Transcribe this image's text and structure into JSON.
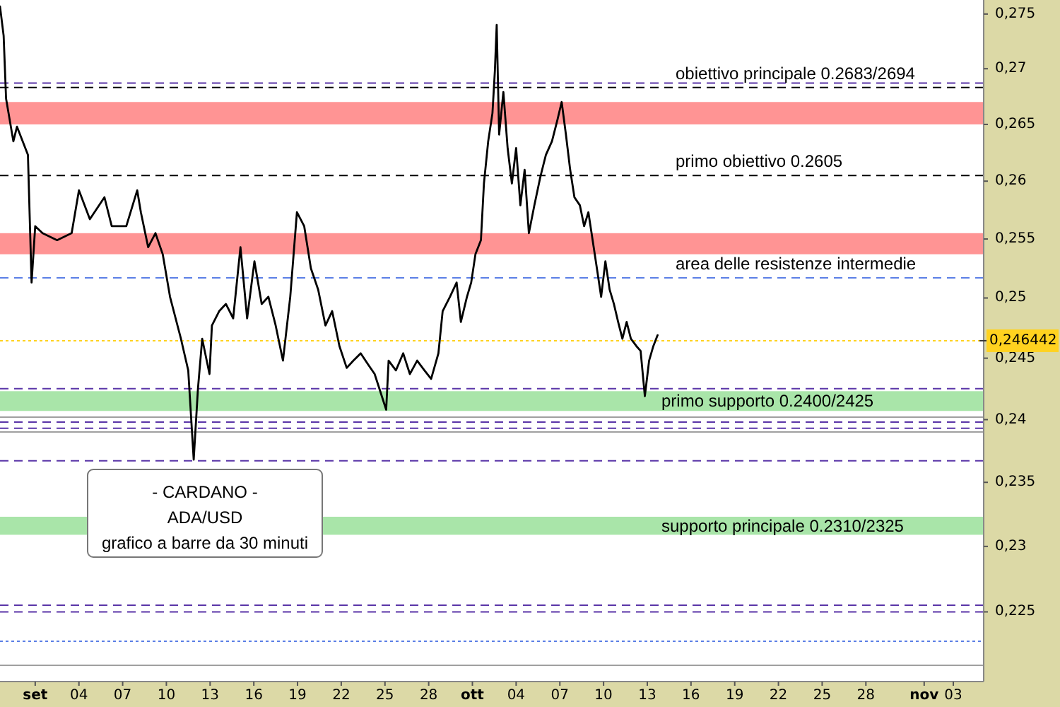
{
  "chart_data": {
    "type": "line",
    "log": "y",
    "xlim": [
      "--08-29T14:00",
      "--11-05T02:00"
    ],
    "ylim": [
      0.2198,
      0.2763
    ],
    "xticks": [
      {
        "value": "--09-01",
        "label": "set"
      },
      {
        "value": "--09-04",
        "label": "04"
      },
      {
        "value": "--09-07",
        "label": "07"
      },
      {
        "value": "--09-10",
        "label": "10"
      },
      {
        "value": "--09-13",
        "label": "13"
      },
      {
        "value": "--09-16",
        "label": "16"
      },
      {
        "value": "--09-19",
        "label": "19"
      },
      {
        "value": "--09-22",
        "label": "22"
      },
      {
        "value": "--09-25",
        "label": "25"
      },
      {
        "value": "--09-28",
        "label": "28"
      },
      {
        "value": "--10-01",
        "label": "ott"
      },
      {
        "value": "--10-04",
        "label": "04"
      },
      {
        "value": "--10-07",
        "label": "07"
      },
      {
        "value": "--10-10",
        "label": "10"
      },
      {
        "value": "--10-13",
        "label": "13"
      },
      {
        "value": "--10-16",
        "label": "16"
      },
      {
        "value": "--10-19",
        "label": "19"
      },
      {
        "value": "--10-22",
        "label": "22"
      },
      {
        "value": "--10-25",
        "label": "25"
      },
      {
        "value": "--10-28",
        "label": "28"
      },
      {
        "value": "--11-01",
        "label": "nov"
      },
      {
        "value": "--11-03",
        "label": "03"
      }
    ],
    "yticks": [
      {
        "value": 0.225,
        "label": "0,225"
      },
      {
        "value": 0.23,
        "label": "0,23"
      },
      {
        "value": 0.235,
        "label": "0,235"
      },
      {
        "value": 0.24,
        "label": "0,24"
      },
      {
        "value": 0.245,
        "label": "0,245"
      },
      {
        "value": 0.25,
        "label": "0,25"
      },
      {
        "value": 0.255,
        "label": "0,255"
      },
      {
        "value": 0.26,
        "label": "0,26"
      },
      {
        "value": 0.265,
        "label": "0,265"
      },
      {
        "value": 0.27,
        "label": "0,27"
      },
      {
        "value": 0.275,
        "label": "0,275"
      }
    ],
    "series": [
      {
        "color": "#000000",
        "x": [
          "--08-29T14:00",
          "--08-29T20:00",
          "--08-30T00:00",
          "--08-30T12:00",
          "--08-30T18:00",
          "--08-31T12:00",
          "--08-31T18:00",
          "--09-01T00:00",
          "--09-01T12:00",
          "--09-02T12:00",
          "--09-03T12:00",
          "--09-04T00:00",
          "--09-04T18:00",
          "--09-05T18:00",
          "--09-06T06:00",
          "--09-07T06:00",
          "--09-08T00:00",
          "--09-08T06:00",
          "--09-08T18:00",
          "--09-09T06:00",
          "--09-09T18:00",
          "--09-10T06:00",
          "--09-11T00:00",
          "--09-11T12:00",
          "--09-11T21:00",
          "--09-12T04:00",
          "--09-12T11:00",
          "--09-12T23:00",
          "--09-13T03:00",
          "--09-13T15:00",
          "--09-14T02:00",
          "--09-14T14:00",
          "--09-15T02:00",
          "--09-15T13:00",
          "--09-16T01:00",
          "--09-16T13:00",
          "--09-17T00:00",
          "--09-17T12:00",
          "--09-18T00:00",
          "--09-18T12:00",
          "--09-18T23:00",
          "--09-19T11:00",
          "--09-19T22:00",
          "--09-20T10:00",
          "--09-20T22:00",
          "--09-21T09:00",
          "--09-21T21:00",
          "--09-22T09:00",
          "--09-22T20:00",
          "--09-23T08:00",
          "--09-23T20:00",
          "--09-24T07:00",
          "--09-25T02:00",
          "--09-25T06:00",
          "--09-25T18:00",
          "--09-26T06:00",
          "--09-26T17:00",
          "--09-27T05:00",
          "--09-27T17:00",
          "--09-28T04:00",
          "--09-28T16:00",
          "--09-28T23:00",
          "--09-29T11:00",
          "--09-29T22:00",
          "--09-30T05:00",
          "--09-30T15:00",
          "--09-30T22:00",
          "--10-01T05:00",
          "--10-01T14:00",
          "--10-01T19:00",
          "--10-02T02:00",
          "--10-02T09:00",
          "--10-02T13:00",
          "--10-02T16:00",
          "--10-02T20:00",
          "--10-03T03:00",
          "--10-03T10:00",
          "--10-03T17:00",
          "--10-04T00:00",
          "--10-04T07:00",
          "--10-04T14:00",
          "--10-04T21:00",
          "--10-05T06:00",
          "--10-05T16:00",
          "--10-06T01:00",
          "--10-06T11:00",
          "--10-06T20:00",
          "--10-07T03:00",
          "--10-07T10:00",
          "--10-07T17:00",
          "--10-08T00:00",
          "--10-08T09:00",
          "--10-08T16:00",
          "--10-08T23:00",
          "--10-09T06:00",
          "--10-09T13:00",
          "--10-09T20:00",
          "--10-10T03:00",
          "--10-10T10:00",
          "--10-10T17:00",
          "--10-11T00:00",
          "--10-11T07:00",
          "--10-11T14:00",
          "--10-11T21:00",
          "--10-12T06:00",
          "--10-12T13:00",
          "--10-12T20:00",
          "--10-13T03:00",
          "--10-13T10:00",
          "--10-13T17:00"
        ],
        "values": [
          0.2757,
          0.273,
          0.2673,
          0.2635,
          0.2648,
          0.2623,
          0.2513,
          0.2561,
          0.2555,
          0.2549,
          0.2555,
          0.2592,
          0.2567,
          0.2586,
          0.2561,
          0.2561,
          0.2592,
          0.2573,
          0.2543,
          0.2555,
          0.2537,
          0.2501,
          0.2466,
          0.244,
          0.2368,
          0.2425,
          0.2466,
          0.2437,
          0.2477,
          0.2489,
          0.2495,
          0.2483,
          0.2543,
          0.2483,
          0.2531,
          0.2495,
          0.2501,
          0.2477,
          0.2448,
          0.2501,
          0.2573,
          0.2561,
          0.2525,
          0.2507,
          0.2477,
          0.2489,
          0.246,
          0.2442,
          0.2448,
          0.2454,
          0.2445,
          0.2437,
          0.2408,
          0.2448,
          0.244,
          0.2454,
          0.2437,
          0.2448,
          0.244,
          0.2433,
          0.2454,
          0.2489,
          0.2501,
          0.2513,
          0.248,
          0.2501,
          0.2513,
          0.2537,
          0.2549,
          0.2598,
          0.2635,
          0.266,
          0.2698,
          0.274,
          0.2641,
          0.2679,
          0.2629,
          0.2598,
          0.2629,
          0.2579,
          0.261,
          0.2555,
          0.2579,
          0.2604,
          0.2623,
          0.2635,
          0.2654,
          0.267,
          0.2641,
          0.261,
          0.2586,
          0.2579,
          0.2561,
          0.2573,
          0.2549,
          0.2525,
          0.2501,
          0.2531,
          0.2507,
          0.2495,
          0.248,
          0.2466,
          0.248,
          0.2466,
          0.246,
          0.2456,
          0.2419,
          0.2448,
          0.246,
          0.2469
        ]
      }
    ],
    "bands": [
      {
        "axis": "y",
        "from": 0.265,
        "to": 0.267,
        "color": "#ff9494"
      },
      {
        "axis": "y",
        "from": 0.2537,
        "to": 0.2555,
        "color": "#ff9494"
      },
      {
        "axis": "y",
        "from": 0.2407,
        "to": 0.2423,
        "color": "#a9e5a9",
        "label": "primo supporto 0.2400/2425"
      },
      {
        "axis": "y",
        "from": 0.2309,
        "to": 0.2323,
        "color": "#a9e5a9",
        "label": "supporto principale 0.2310/2325"
      }
    ],
    "ref_lines": [
      {
        "axis": "y",
        "value": 0.2687,
        "color": "#5a35a8",
        "line_style": "dashed"
      },
      {
        "axis": "y",
        "value": 0.2683,
        "color": "#000000",
        "line_style": "dashed",
        "label": "obiettivo principale 0.2683/2694"
      },
      {
        "axis": "y",
        "value": 0.2605,
        "color": "#000000",
        "line_style": "dashed",
        "label": "primo obiettivo 0.2605"
      },
      {
        "axis": "y",
        "value": 0.2517,
        "color": "#5b7fe6",
        "line_style": "dashed",
        "label": "area delle resistenze intermedie"
      },
      {
        "axis": "y",
        "value": 0.2425,
        "color": "#5a35a8",
        "line_style": "dashed"
      },
      {
        "axis": "y",
        "value": 0.2402,
        "color": "#a0a0a0",
        "line_style": "solid"
      },
      {
        "axis": "y",
        "value": 0.2398,
        "color": "#5a35a8",
        "line_style": "dashed"
      },
      {
        "axis": "y",
        "value": 0.2393,
        "color": "#5a35a8",
        "line_style": "dashed"
      },
      {
        "axis": "y",
        "value": 0.239,
        "color": "#a0a0a0",
        "line_style": "solid"
      },
      {
        "axis": "y",
        "value": 0.2367,
        "color": "#5a35a8",
        "line_style": "dashed"
      },
      {
        "axis": "y",
        "value": 0.2255,
        "color": "#5a35a8",
        "line_style": "dashed"
      },
      {
        "axis": "y",
        "value": 0.225,
        "color": "#5a35a8",
        "line_style": "dashed"
      },
      {
        "axis": "y",
        "value": 0.2228,
        "color": "#5b7fe6",
        "line_style": "dotted"
      },
      {
        "axis": "y",
        "value": 0.221,
        "color": "#a0a0a0",
        "line_style": "solid"
      },
      {
        "axis": "y",
        "value": 0.246442,
        "color": "#ffd21f",
        "line_style": "dotted",
        "label": "0,246442"
      }
    ],
    "annotations": [
      "- CARDANO -",
      "ADA/USD",
      "grafico a barre da 30 minuti"
    ]
  }
}
